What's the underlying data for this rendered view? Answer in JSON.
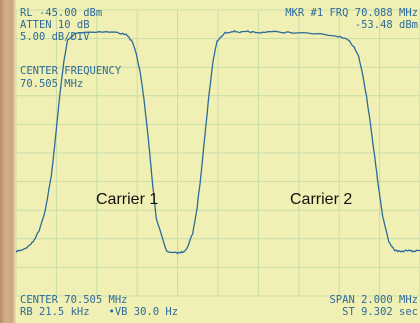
{
  "header": {
    "rl_line": "RL -45.00 dBm",
    "atten_line": "ATTEN 10 dB",
    "scale_line": "5.00 dB/DIV",
    "marker_line": "MKR #1 FRQ 70.088 MHz",
    "marker_value": "-53.48 dBm",
    "center_label": "CENTER FREQUENCY",
    "center_value": "70.505 MHz"
  },
  "footer": {
    "center": "CENTER 70.505 MHz",
    "span": "SPAN 2.000 MHz",
    "rbw_vbw": "RB 21.5 kHz   •VB 30.0 Hz",
    "sweep": "ST 9.302 sec"
  },
  "colors": {
    "screen_bg": "#f1f0b4",
    "grid": "#c8dca8",
    "trace": "#2c6b9a",
    "text": "#2c6b9a",
    "bezel": "#c8a27a"
  },
  "chart_data": {
    "type": "line",
    "title": "",
    "xlabel": "",
    "ylabel": "",
    "x_center_mhz": 70.505,
    "x_span_mhz": 2.0,
    "xlim": [
      69.505,
      71.505
    ],
    "ylim": [
      -95,
      -45
    ],
    "grid": true,
    "annotations": [
      {
        "text": "Carrier 1",
        "x": 69.9,
        "y": -80.5
      },
      {
        "text": "Carrier 2",
        "x": 70.97,
        "y": -80.5
      }
    ],
    "series": [
      {
        "x": [
          69.505,
          69.53,
          69.56,
          69.59,
          69.62,
          69.65,
          69.68,
          69.7,
          69.72,
          69.74,
          69.76,
          69.8,
          69.9,
          70.0,
          70.05,
          70.08,
          70.1,
          70.12,
          70.14,
          70.16,
          70.18,
          70.2,
          70.25,
          70.3,
          70.33,
          70.35,
          70.38,
          70.4,
          70.42,
          70.44,
          70.46,
          70.48,
          70.5,
          70.54,
          70.58,
          70.62,
          70.66,
          70.7,
          70.75,
          70.85,
          71.0,
          71.1,
          71.15,
          71.18,
          71.2,
          71.22,
          71.24,
          71.26,
          71.28,
          71.3,
          71.32,
          71.35,
          71.38,
          71.41,
          71.44,
          71.47,
          71.505
        ],
        "y": [
          -87.2,
          -87.0,
          -86.5,
          -85.5,
          -83.5,
          -80.0,
          -74.0,
          -67.5,
          -60.5,
          -54.5,
          -50.3,
          -49.0,
          -48.8,
          -48.9,
          -49.3,
          -50.5,
          -52.5,
          -56.0,
          -61.0,
          -67.5,
          -75.0,
          -81.5,
          -87.2,
          -87.5,
          -87.3,
          -86.8,
          -84.0,
          -80.0,
          -74.0,
          -67.0,
          -60.0,
          -54.0,
          -50.5,
          -49.0,
          -48.7,
          -48.9,
          -48.8,
          -49.0,
          -48.8,
          -48.9,
          -49.2,
          -49.6,
          -50.3,
          -51.5,
          -53.0,
          -56.0,
          -60.0,
          -65.0,
          -70.5,
          -76.0,
          -81.0,
          -85.5,
          -87.0,
          -87.3,
          -87.0,
          -87.2,
          -87.0
        ]
      }
    ]
  }
}
